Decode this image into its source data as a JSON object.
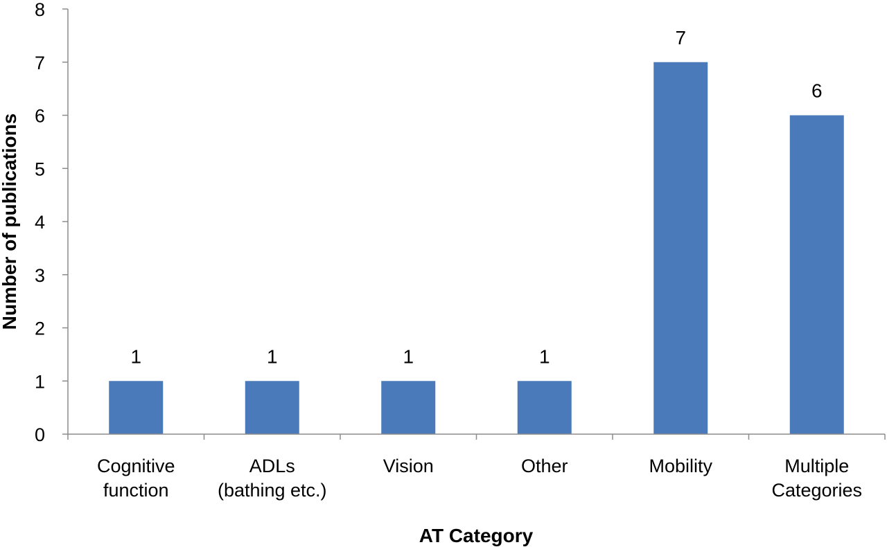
{
  "chart_data": {
    "type": "bar",
    "categories": [
      [
        "Cognitive",
        "function"
      ],
      [
        "ADLs",
        "(bathing etc.)"
      ],
      [
        "Vision"
      ],
      [
        "Other"
      ],
      [
        "Mobility"
      ],
      [
        "Multiple",
        "Categories"
      ]
    ],
    "values": [
      1,
      1,
      1,
      1,
      7,
      6
    ],
    "data_labels": [
      "1",
      "1",
      "1",
      "1",
      "7",
      "6"
    ],
    "xlabel": "AT Category",
    "ylabel": "Number of publications",
    "ylim": [
      0,
      8
    ],
    "yticks": [
      "0",
      "1",
      "2",
      "3",
      "4",
      "5",
      "6",
      "7",
      "8"
    ],
    "grid": false,
    "bar_color": "#4a7aba",
    "axis_color": "#8c8c8c"
  }
}
